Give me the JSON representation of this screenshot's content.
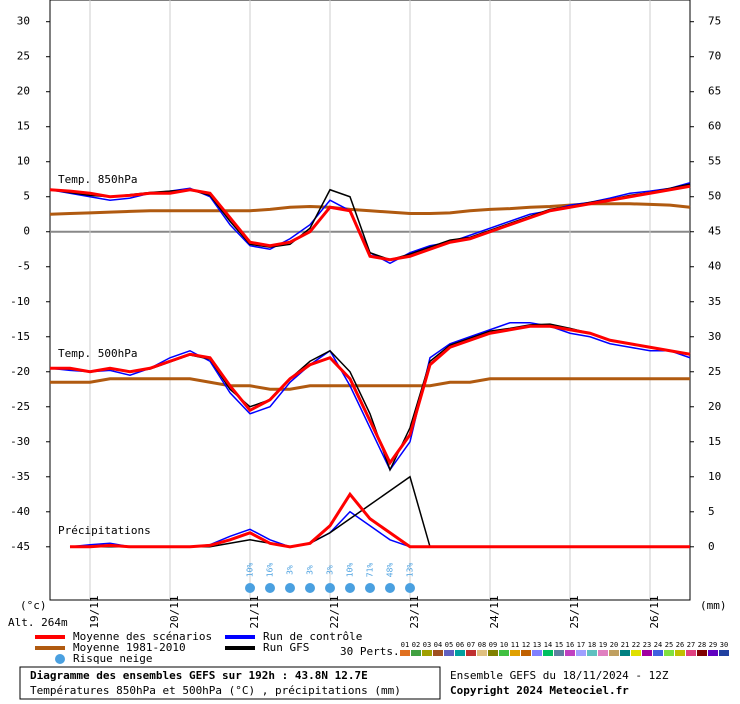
{
  "chart_data": {
    "type": "line",
    "categories": [
      null,
      null,
      "19/11",
      null,
      null,
      null,
      "20/11",
      null,
      null,
      null,
      "21/11",
      null,
      null,
      null,
      "22/11",
      null,
      null,
      null,
      "23/11",
      null,
      null,
      null,
      "24/11",
      null,
      null,
      null,
      "25/11",
      null,
      null,
      null,
      "26/11",
      null,
      null
    ],
    "ylim": [
      -52.6,
      33.1
    ],
    "yticks": [
      -45,
      -40,
      -35,
      -30,
      -25,
      -20,
      -15,
      -10,
      -5,
      0,
      5,
      10,
      15,
      20,
      25,
      30
    ],
    "y2lim": [
      -7.6,
      78.1
    ],
    "y2ticks": [
      0,
      5,
      10,
      15,
      20,
      25,
      30,
      35,
      40,
      45,
      50,
      55,
      60,
      65,
      70,
      75
    ],
    "y_label": "(°c)",
    "y2_label": "(mm)",
    "altitude": "Alt. 264m",
    "grid": true,
    "annotations": [
      "Temp. 850hPa",
      "Temp. 500hPa",
      "Précipitations"
    ],
    "series": [
      {
        "name": "Moyenne des scénarios",
        "color": "#ff0000",
        "t850": [
          6,
          5.8,
          5.5,
          5,
          5.2,
          5.5,
          5.5,
          6,
          5.5,
          2,
          -1.5,
          -2,
          -1.5,
          0,
          3.5,
          3,
          -3.5,
          -4,
          -3.5,
          -2.5,
          -1.5,
          -1,
          0,
          1,
          2,
          3,
          3.5,
          4,
          4.5,
          5,
          5.5,
          6,
          6.5
        ],
        "t500": [
          -19.5,
          -19.5,
          -20,
          -19.5,
          -20,
          -19.5,
          -18.5,
          -17.5,
          -18,
          -22,
          -25.5,
          -24,
          -21,
          -19,
          -18,
          -21,
          -27,
          -33,
          -29,
          -19,
          -16.5,
          -15.5,
          -14.5,
          -14,
          -13.5,
          -13.5,
          -14,
          -14.5,
          -15.5,
          -16,
          -16.5,
          -17,
          -17.5
        ],
        "precip": [
          null,
          0,
          0,
          0.2,
          0,
          0,
          0,
          0,
          0.2,
          1,
          2,
          0.5,
          0,
          0.5,
          3,
          7.5,
          4,
          2,
          0,
          0,
          0,
          0,
          0,
          0,
          0,
          0,
          0,
          0,
          0,
          0,
          0,
          0,
          0
        ]
      },
      {
        "name": "Moyenne 1981-2010",
        "color": "#b05a10",
        "t850": [
          2.5,
          2.6,
          2.7,
          2.8,
          2.9,
          3,
          3,
          3,
          3,
          3,
          3,
          3.2,
          3.5,
          3.6,
          3.5,
          3.2,
          3,
          2.8,
          2.6,
          2.6,
          2.7,
          3,
          3.2,
          3.3,
          3.5,
          3.6,
          3.8,
          4,
          4,
          4,
          3.9,
          3.8,
          3.5
        ],
        "t500": [
          -21.5,
          -21.5,
          -21.5,
          -21,
          -21,
          -21,
          -21,
          -21,
          -21.5,
          -22,
          -22,
          -22.5,
          -22.5,
          -22,
          -22,
          -22,
          -22,
          -22,
          -22,
          -22,
          -21.5,
          -21.5,
          -21,
          -21,
          -21,
          -21,
          -21,
          -21,
          -21,
          -21,
          -21,
          -21,
          -21
        ]
      },
      {
        "name": "Run de contrôle",
        "color": "#0000ff",
        "t850": [
          6,
          5.5,
          5,
          4.5,
          4.8,
          5.5,
          5.8,
          6.2,
          5,
          1,
          -2,
          -2.5,
          -1,
          1,
          4.5,
          3,
          -3,
          -4.5,
          -3,
          -2,
          -1.5,
          -0.5,
          0.5,
          1.5,
          2.5,
          3,
          3.8,
          4.2,
          4.8,
          5.5,
          5.8,
          6.2,
          7
        ],
        "t500": [
          -19.5,
          -19.8,
          -20,
          -19.8,
          -20.5,
          -19.5,
          -18,
          -17,
          -18.5,
          -23,
          -26,
          -25,
          -21.5,
          -19,
          -17,
          -22,
          -28,
          -34,
          -30,
          -18,
          -16,
          -15,
          -14,
          -13,
          -13,
          -13.5,
          -14.5,
          -15,
          -16,
          -16.5,
          -17,
          -17,
          -18
        ],
        "precip": [
          null,
          0,
          0.3,
          0.5,
          0,
          0,
          0,
          0,
          0.3,
          1.5,
          2.5,
          1,
          0,
          0.5,
          2,
          5,
          3,
          1,
          0,
          0,
          0,
          0,
          0,
          0,
          0,
          0,
          0,
          0,
          0,
          0,
          0,
          0,
          0
        ]
      },
      {
        "name": "Run GFS",
        "color": "#000000",
        "t850": [
          6,
          5.6,
          5.2,
          5,
          5.3,
          5.6,
          5.8,
          6,
          5.2,
          1.5,
          -1.8,
          -2.2,
          -1.8,
          0.5,
          6,
          5,
          -3,
          -4,
          -3.2,
          -2.2,
          -1.2,
          -0.8,
          0.2,
          1.2,
          2.2,
          3.2,
          3.6,
          4.2,
          4.6,
          5.2,
          5.6,
          6.2,
          6.8
        ],
        "t500": [
          -19.5,
          -19.6,
          -20,
          -19.6,
          -20,
          -19.6,
          -18.6,
          -17.6,
          -18.2,
          -22.5,
          -25,
          -24,
          -21,
          -18.5,
          -17,
          -20,
          -26,
          -34,
          -28,
          -18.5,
          -16.2,
          -15.2,
          -14.2,
          -13.8,
          -13.3,
          -13.2,
          -13.8,
          -14.5,
          -15.5,
          -16,
          -16.5,
          -17,
          -17.5
        ],
        "precip": [
          null,
          0,
          0,
          0,
          0,
          0,
          0,
          0,
          0,
          0.5,
          1,
          0.5,
          0,
          0.5,
          2,
          4,
          6,
          8,
          10,
          0,
          0,
          0,
          0,
          0,
          0,
          0,
          0,
          0,
          0,
          0,
          0,
          0,
          0
        ]
      }
    ],
    "snow_risk": {
      "label": "Risque neige",
      "color": "#4aa0e0",
      "values": [
        null,
        null,
        null,
        null,
        null,
        null,
        null,
        null,
        null,
        null,
        10,
        16,
        3,
        3,
        3,
        10,
        71,
        48,
        13,
        null,
        null,
        null,
        null,
        null,
        null,
        null,
        null,
        null,
        null,
        null,
        null,
        null,
        null
      ],
      "value_labels": [
        null,
        null,
        null,
        null,
        null,
        null,
        null,
        null,
        null,
        null,
        "10%",
        "16%",
        "3%",
        "3%",
        "3%",
        "10%",
        "71%",
        "48%",
        "13%",
        null,
        null,
        null,
        null,
        null,
        null,
        null,
        null,
        null,
        null,
        null,
        null,
        null,
        null
      ]
    },
    "perturbations": {
      "label": "30 Perts.",
      "names": [
        "01",
        "02",
        "03",
        "04",
        "05",
        "06",
        "07",
        "08",
        "09",
        "10",
        "11",
        "12",
        "13",
        "14",
        "15",
        "16",
        "17",
        "18",
        "19",
        "20",
        "21",
        "22",
        "23",
        "24",
        "25",
        "26",
        "27",
        "28",
        "29",
        "30"
      ],
      "colors": [
        "#e07020",
        "#40a040",
        "#a0a000",
        "#a05020",
        "#6060c0",
        "#00a0a0",
        "#c03030",
        "#e0c080",
        "#808000",
        "#40c040",
        "#e0a000",
        "#c06000",
        "#8080ff",
        "#00c060",
        "#6080a0",
        "#c040c0",
        "#a0a0ff",
        "#60c0c0",
        "#e080c0",
        "#c0a060",
        "#008080",
        "#e0e000",
        "#a000a0",
        "#4060e0",
        "#80e040",
        "#c0c000",
        "#e04080",
        "#800000",
        "#6000c0",
        "#2040a0"
      ]
    },
    "footer": {
      "title": "Diagramme des ensembles GEFS sur 192h : 43.8N 12.7E",
      "subtitle": "Températures 850hPa et 500hPa (°C) , précipitations (mm)",
      "run": "Ensemble GEFS du 18/11/2024 - 12Z",
      "copyright": "Copyright 2024 Meteociel.fr"
    }
  }
}
